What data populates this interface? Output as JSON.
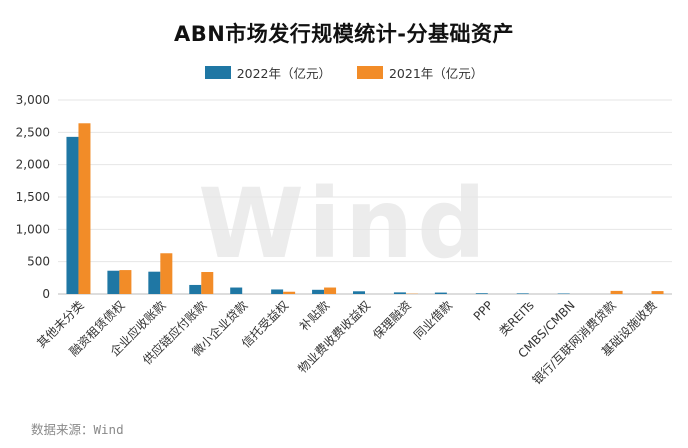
{
  "watermark": "Wind",
  "source": "数据来源：Wind",
  "chart_data": {
    "type": "bar",
    "title": "ABN市场发行规模统计-分基础资产",
    "categories": [
      "其他未分类",
      "融资租赁债权",
      "企业应收账款",
      "供应链应付账款",
      "微小企业贷款",
      "信托受益权",
      "补贴款",
      "物业费收费收益权",
      "保理融资",
      "同业借款",
      "PPP",
      "类REITs",
      "CMBS/CMBN",
      "银行/互联网消费贷款",
      "基础设施收费"
    ],
    "series": [
      {
        "name": "2022年（亿元）",
        "color": "#1f77a4",
        "values": [
          2430,
          360,
          345,
          140,
          100,
          70,
          65,
          42,
          25,
          22,
          12,
          10,
          8,
          0,
          0
        ]
      },
      {
        "name": "2021年（亿元）",
        "color": "#f28c28",
        "values": [
          2640,
          370,
          630,
          340,
          0,
          35,
          100,
          0,
          5,
          0,
          0,
          0,
          0,
          48,
          45
        ]
      }
    ],
    "ylim": [
      0,
      3000
    ],
    "yticks": [
      0,
      500,
      1000,
      1500,
      2000,
      2500,
      3000
    ],
    "ytick_labels": [
      "0",
      "500",
      "1,000",
      "1,500",
      "2,000",
      "2,500",
      "3,000"
    ],
    "xlabel": "",
    "ylabel": "",
    "grid": true,
    "legend_position": "top"
  }
}
